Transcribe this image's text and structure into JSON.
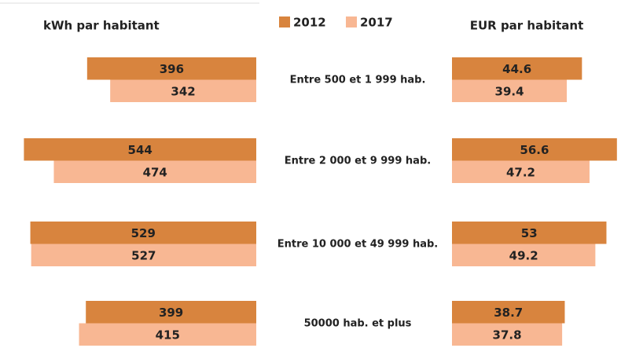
{
  "chart_data": [
    {
      "type": "bar",
      "orientation": "horizontal",
      "direction": "left",
      "title": "kWh par habitant",
      "categories": [
        "Entre 500 et 1 999 hab.",
        "Entre 2 000 et 9 999 hab.",
        "Entre 10 000 et 49 999 hab.",
        "50000 hab. et plus"
      ],
      "series": [
        {
          "name": "2012",
          "color": "#d8843e",
          "values": [
            396,
            544,
            529,
            399
          ]
        },
        {
          "name": "2017",
          "color": "#f8b793",
          "values": [
            342,
            474,
            527,
            415
          ]
        }
      ],
      "xlim": [
        0,
        600
      ]
    },
    {
      "type": "bar",
      "orientation": "horizontal",
      "direction": "right",
      "title": "EUR par habitant",
      "series": [
        {
          "color": "#d8843e",
          "values": [
            44.6,
            56.6,
            53,
            38.7
          ]
        },
        {
          "color": "#f8b793",
          "values": [
            39.4,
            47.2,
            49.2,
            37.8
          ]
        }
      ],
      "xlim": [
        0,
        58
      ]
    }
  ]
}
